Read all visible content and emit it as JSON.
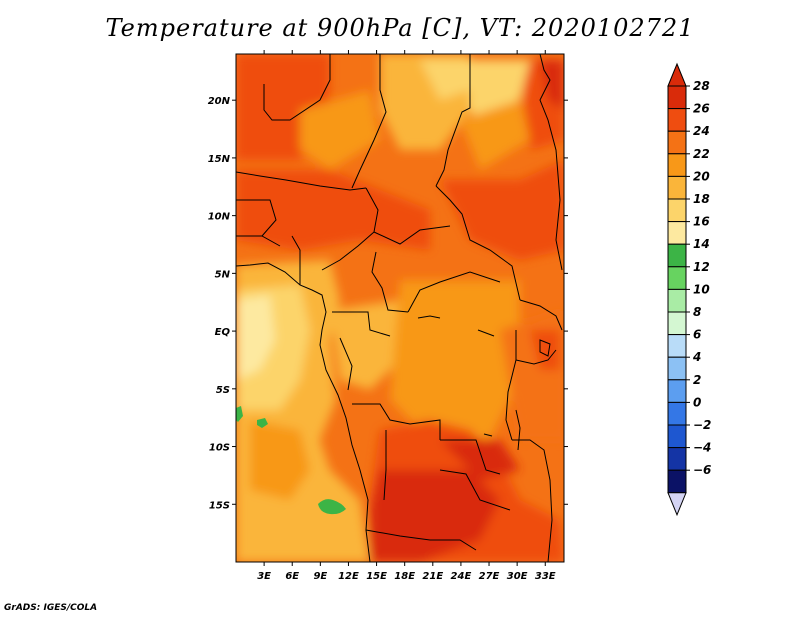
{
  "title": "Temperature at 900hPa [C], VT: 2020102721",
  "credit": "GrADS: IGES/COLA",
  "map": {
    "lon_range": [
      0,
      35
    ],
    "lat_range": [
      -20,
      24
    ],
    "lon_ticks": [
      "3E",
      "6E",
      "9E",
      "12E",
      "15E",
      "18E",
      "21E",
      "24E",
      "27E",
      "30E",
      "33E"
    ],
    "lat_ticks": [
      "20N",
      "15N",
      "10N",
      "5N",
      "EQ",
      "5S",
      "10S",
      "15S"
    ]
  },
  "colorbar": {
    "labels": [
      "28",
      "26",
      "24",
      "22",
      "20",
      "18",
      "16",
      "14",
      "12",
      "10",
      "8",
      "6",
      "4",
      "2",
      "0",
      "−2",
      "−4",
      "−6"
    ],
    "colors": [
      "#d92b0a",
      "#ef4d10",
      "#f47215",
      "#f89818",
      "#fab53a",
      "#fcd46a",
      "#fde9a0",
      "#3cb446",
      "#67d360",
      "#a9eca5",
      "#d4f7d2",
      "#b9dcf8",
      "#8cc1f4",
      "#5c9ef0",
      "#3477e6",
      "#1e57d0",
      "#1434a5",
      "#0b1266"
    ],
    "over_color": "#d92b0a",
    "under_color": "#d4d4f4"
  }
}
